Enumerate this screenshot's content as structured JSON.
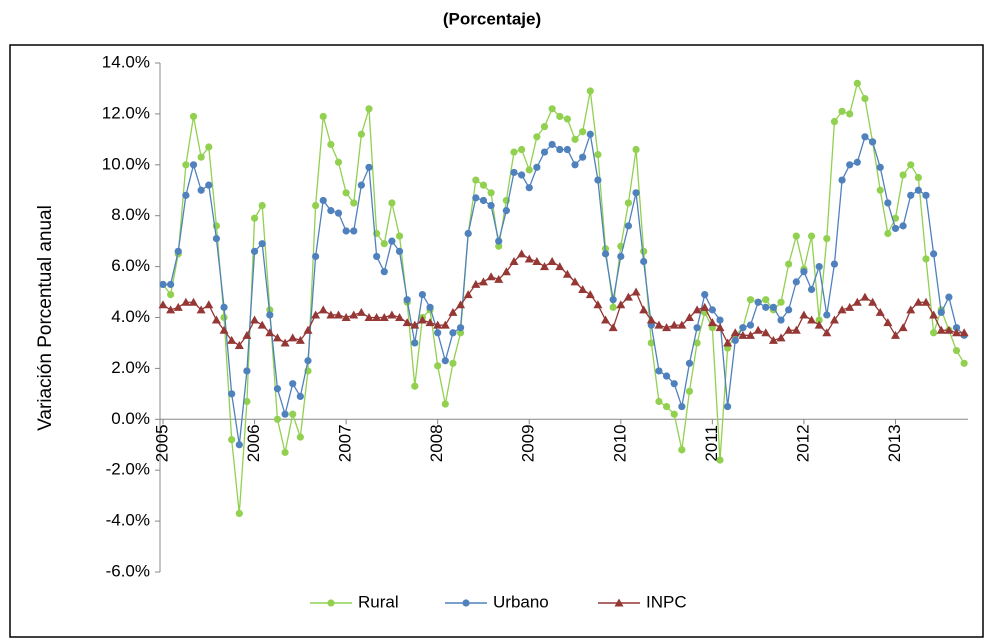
{
  "chart_data": {
    "type": "line",
    "title": "(Porcentaje)",
    "ylabel": "Variación Porcentual anual",
    "categories": [
      "2005",
      null,
      null,
      null,
      null,
      null,
      null,
      null,
      null,
      null,
      null,
      null,
      "2006",
      null,
      null,
      null,
      null,
      null,
      null,
      null,
      null,
      null,
      null,
      null,
      "2007",
      null,
      null,
      null,
      null,
      null,
      null,
      null,
      null,
      null,
      null,
      null,
      "2008",
      null,
      null,
      null,
      null,
      null,
      null,
      null,
      null,
      null,
      null,
      null,
      "2009",
      null,
      null,
      null,
      null,
      null,
      null,
      null,
      null,
      null,
      null,
      null,
      "2010",
      null,
      null,
      null,
      null,
      null,
      null,
      null,
      null,
      null,
      null,
      null,
      "2011",
      null,
      null,
      null,
      null,
      null,
      null,
      null,
      null,
      null,
      null,
      null,
      "2012",
      null,
      null,
      null,
      null,
      null,
      null,
      null,
      null,
      null,
      null,
      null,
      "2013",
      null,
      null,
      null,
      null,
      null,
      null,
      null,
      null,
      null
    ],
    "series": [
      {
        "name": "Rural",
        "color": "#92d050",
        "marker": "circle",
        "values": [
          5.3,
          4.9,
          6.5,
          10.0,
          11.9,
          10.3,
          10.7,
          7.6,
          4.0,
          -0.8,
          -3.7,
          0.7,
          7.9,
          8.4,
          4.3,
          0.0,
          -1.3,
          0.2,
          -0.7,
          1.9,
          8.4,
          11.9,
          10.8,
          10.1,
          8.9,
          8.5,
          11.2,
          12.2,
          7.3,
          6.9,
          8.5,
          7.2,
          4.6,
          1.3,
          4.0,
          4.3,
          2.1,
          0.6,
          2.2,
          3.4,
          7.3,
          9.4,
          9.2,
          8.9,
          6.8,
          8.6,
          10.5,
          10.6,
          9.8,
          11.1,
          11.5,
          12.2,
          11.9,
          11.8,
          11.0,
          11.3,
          12.9,
          10.4,
          6.7,
          4.4,
          6.8,
          8.5,
          10.6,
          6.6,
          3.0,
          0.7,
          0.5,
          0.2,
          -1.2,
          1.1,
          3.0,
          4.2,
          3.6,
          -1.6,
          2.8,
          3.3,
          3.6,
          4.7,
          4.6,
          4.7,
          4.3,
          4.6,
          6.1,
          7.2,
          5.9,
          7.2,
          3.9,
          7.1,
          11.7,
          12.1,
          12.0,
          13.2,
          12.6,
          10.9,
          9.0,
          7.3,
          7.9,
          9.6,
          10.0,
          9.5,
          6.3,
          3.4,
          4.3,
          3.5,
          2.7,
          2.2
        ]
      },
      {
        "name": "Urbano",
        "color": "#4f81bd",
        "marker": "circle",
        "values": [
          5.3,
          5.3,
          6.6,
          8.8,
          10.0,
          9.0,
          9.2,
          7.1,
          4.4,
          1.0,
          -1.0,
          1.9,
          6.6,
          6.9,
          4.1,
          1.2,
          0.2,
          1.4,
          0.9,
          2.3,
          6.4,
          8.6,
          8.2,
          8.1,
          7.4,
          7.4,
          9.2,
          9.9,
          6.4,
          5.8,
          7.0,
          6.6,
          4.7,
          3.0,
          4.9,
          4.4,
          3.4,
          2.3,
          3.4,
          3.6,
          7.3,
          8.7,
          8.6,
          8.4,
          7.0,
          8.2,
          9.7,
          9.6,
          9.1,
          9.9,
          10.5,
          10.8,
          10.6,
          10.6,
          10.0,
          10.3,
          11.2,
          9.4,
          6.5,
          4.7,
          6.4,
          7.6,
          8.9,
          6.2,
          3.7,
          1.9,
          1.7,
          1.4,
          0.5,
          2.2,
          3.6,
          4.9,
          4.3,
          3.9,
          0.5,
          3.1,
          3.6,
          3.7,
          4.6,
          4.4,
          4.4,
          3.9,
          4.3,
          5.4,
          5.8,
          5.1,
          6.0,
          4.1,
          6.1,
          9.4,
          10.0,
          10.1,
          11.1,
          10.9,
          9.9,
          8.5,
          7.5,
          7.6,
          8.8,
          9.0,
          8.8,
          6.5,
          4.2,
          4.8,
          3.6,
          3.3
        ]
      },
      {
        "name": "INPC",
        "color": "#953735",
        "marker": "triangle",
        "values": [
          4.5,
          4.3,
          4.4,
          4.6,
          4.6,
          4.3,
          4.5,
          3.9,
          3.5,
          3.1,
          2.9,
          3.3,
          3.9,
          3.7,
          3.4,
          3.2,
          3.0,
          3.2,
          3.1,
          3.5,
          4.1,
          4.3,
          4.1,
          4.1,
          4.0,
          4.1,
          4.2,
          4.0,
          4.0,
          4.0,
          4.1,
          4.0,
          3.8,
          3.7,
          3.9,
          3.8,
          3.7,
          3.7,
          4.2,
          4.5,
          4.9,
          5.3,
          5.4,
          5.6,
          5.5,
          5.8,
          6.2,
          6.5,
          6.3,
          6.2,
          6.0,
          6.2,
          6.0,
          5.7,
          5.4,
          5.1,
          4.9,
          4.5,
          3.9,
          3.6,
          4.5,
          4.8,
          5.0,
          4.3,
          3.9,
          3.7,
          3.6,
          3.7,
          3.7,
          4.0,
          4.3,
          4.4,
          3.8,
          3.6,
          3.0,
          3.4,
          3.3,
          3.3,
          3.5,
          3.4,
          3.1,
          3.2,
          3.5,
          3.5,
          4.1,
          3.9,
          3.7,
          3.4,
          3.9,
          4.3,
          4.4,
          4.6,
          4.8,
          4.6,
          4.2,
          3.8,
          3.3,
          3.6,
          4.3,
          4.6,
          4.6,
          4.1,
          3.5,
          3.5,
          3.4,
          3.4
        ]
      }
    ],
    "ylim": [
      -6,
      14
    ],
    "yticks": [
      {
        "value": -6,
        "label": "-6.0%"
      },
      {
        "value": -4,
        "label": "-4.0%"
      },
      {
        "value": -2,
        "label": "-2.0%"
      },
      {
        "value": 0,
        "label": "0.0%"
      },
      {
        "value": 2,
        "label": "2.0%"
      },
      {
        "value": 4,
        "label": "4.0%"
      },
      {
        "value": 6,
        "label": "6.0%"
      },
      {
        "value": 8,
        "label": "8.0%"
      },
      {
        "value": 10,
        "label": "10.0%"
      },
      {
        "value": 12,
        "label": "12.0%"
      },
      {
        "value": 14,
        "label": "14.0%"
      }
    ],
    "legend": "bottom"
  }
}
